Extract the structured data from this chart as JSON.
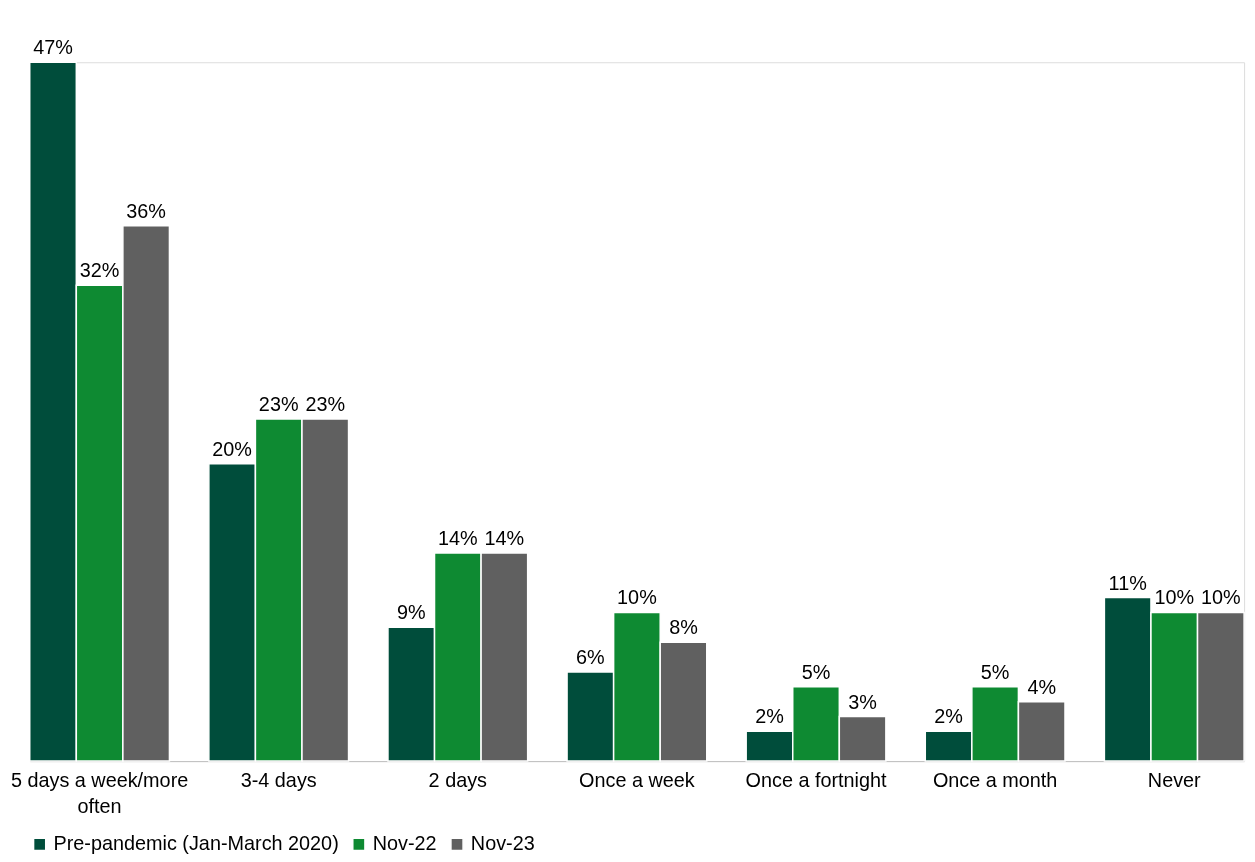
{
  "chart_data": {
    "type": "bar",
    "categories": [
      "5 days a week/more often",
      "3-4 days",
      "2 days",
      "Once a week",
      "Once a fortnight",
      "Once a month",
      "Never"
    ],
    "series": [
      {
        "name": "Pre-pandemic (Jan-March 2020)",
        "color": "#004d3b",
        "values": [
          47,
          20,
          9,
          6,
          2,
          2,
          11
        ],
        "value_labels": [
          "47%",
          "20%",
          "9%",
          "6%",
          "2%",
          "2%",
          "11%"
        ]
      },
      {
        "name": "Nov-22",
        "color": "#0e8a32",
        "values": [
          32,
          23,
          14,
          10,
          5,
          5,
          10
        ],
        "value_labels": [
          "32%",
          "23%",
          "14%",
          "10%",
          "5%",
          "5%",
          "10%"
        ]
      },
      {
        "name": "Nov-23",
        "color": "#606060",
        "values": [
          36,
          23,
          14,
          8,
          3,
          4,
          10
        ],
        "value_labels": [
          "36%",
          "23%",
          "14%",
          "8%",
          "3%",
          "4%",
          "10%"
        ]
      }
    ],
    "legend": "bottom"
  }
}
